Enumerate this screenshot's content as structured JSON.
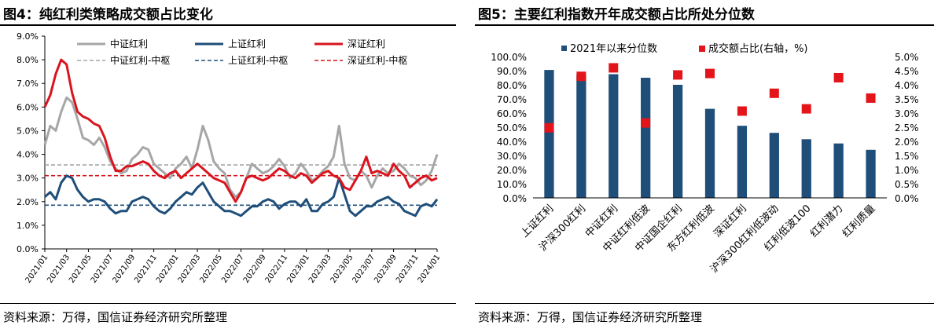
{
  "left": {
    "title": "图4：纯红利类策略成交额占比变化",
    "source": "资料来源：万得，国信证券经济研究所整理"
  },
  "right": {
    "title": "图5：主要红利指数开年成交额占比所处分位数",
    "source": "资料来源：万得，国信证券经济研究所整理"
  },
  "chart_data": [
    {
      "type": "line",
      "title": "",
      "xlabel": "",
      "ylabel": "",
      "ylim": [
        0,
        9
      ],
      "y_ticks": [
        "0.0%",
        "1.0%",
        "2.0%",
        "3.0%",
        "4.0%",
        "5.0%",
        "6.0%",
        "7.0%",
        "8.0%",
        "9.0%"
      ],
      "x_ticks": [
        "2021/01",
        "2021/03",
        "2021/05",
        "2021/07",
        "2021/09",
        "2021/11",
        "2022/01",
        "2022/03",
        "2022/05",
        "2022/07",
        "2022/09",
        "2022/11",
        "2023/01",
        "2023/03",
        "2023/05",
        "2023/07",
        "2023/09",
        "2023/11",
        "2024/01"
      ],
      "legend": [
        "中证红利",
        "上证红利",
        "深证红利",
        "中证红利-中枢",
        "上证红利-中枢",
        "深证红利-中枢"
      ],
      "colors": {
        "zhongzheng": "#a6a6a6",
        "shangzheng": "#1f4e79",
        "shenzheng": "#d9141e"
      },
      "x_months": [
        0,
        0.5,
        1,
        1.5,
        2,
        2.5,
        3,
        3.5,
        4,
        4.5,
        5,
        5.5,
        6,
        6.5,
        7,
        7.5,
        8,
        8.5,
        9,
        9.5,
        10,
        10.5,
        11,
        11.5,
        12,
        12.5,
        13,
        13.5,
        14,
        14.5,
        15,
        15.5,
        16,
        16.5,
        17,
        17.5,
        18,
        18.5,
        19,
        19.5,
        20,
        20.5,
        21,
        21.5,
        22,
        22.5,
        23,
        23.5,
        24,
        24.5,
        25,
        25.5,
        26,
        26.5,
        27,
        27.5,
        28,
        28.5,
        29,
        29.5,
        30,
        30.5,
        31,
        31.5,
        32,
        32.5,
        33,
        33.5,
        34,
        34.5,
        35,
        35.5,
        36
      ],
      "series": [
        {
          "name": "中证红利",
          "values": [
            4.4,
            5.2,
            5.0,
            5.8,
            6.4,
            6.2,
            5.5,
            4.7,
            4.6,
            4.4,
            4.7,
            4.3,
            3.7,
            3.4,
            3.2,
            3.3,
            3.8,
            4.0,
            4.3,
            4.2,
            3.6,
            3.4,
            3.2,
            3.0,
            3.4,
            3.6,
            3.9,
            3.4,
            4.2,
            5.2,
            4.6,
            3.7,
            3.4,
            3.2,
            2.5,
            2.2,
            2.4,
            3.0,
            3.6,
            3.4,
            3.2,
            3.3,
            3.5,
            3.8,
            3.5,
            3.0,
            3.2,
            3.6,
            3.3,
            2.9,
            3.0,
            3.3,
            3.5,
            3.9,
            5.2,
            3.6,
            3.0,
            2.9,
            3.3,
            3.1,
            2.6,
            3.1,
            3.4,
            3.2,
            3.3,
            3.6,
            3.4,
            3.1,
            3.0,
            2.7,
            2.9,
            3.3,
            4.0
          ]
        },
        {
          "name": "上证红利",
          "values": [
            2.2,
            2.4,
            2.1,
            2.8,
            3.1,
            3.0,
            2.5,
            2.2,
            2.0,
            2.1,
            2.1,
            2.0,
            1.7,
            1.5,
            1.6,
            1.6,
            2.0,
            2.1,
            2.2,
            2.1,
            1.8,
            1.6,
            1.5,
            1.7,
            2.0,
            2.2,
            2.4,
            2.3,
            2.6,
            2.8,
            2.4,
            2.0,
            1.8,
            1.6,
            1.6,
            1.5,
            1.4,
            1.6,
            1.8,
            1.8,
            2.0,
            2.1,
            2.0,
            1.7,
            1.9,
            2.0,
            2.0,
            1.8,
            2.1,
            1.6,
            1.6,
            1.9,
            2.0,
            2.2,
            3.0,
            2.3,
            1.6,
            1.4,
            1.6,
            1.8,
            1.8,
            2.0,
            2.1,
            2.2,
            2.0,
            1.9,
            1.6,
            1.5,
            1.4,
            1.8,
            1.9,
            1.8,
            2.1
          ]
        },
        {
          "name": "深证红利",
          "values": [
            6.0,
            6.5,
            7.4,
            8.0,
            7.8,
            6.6,
            5.8,
            5.6,
            5.5,
            5.3,
            5.2,
            4.7,
            3.9,
            3.3,
            3.3,
            3.5,
            3.5,
            3.6,
            3.7,
            3.6,
            3.3,
            3.1,
            3.0,
            3.2,
            3.3,
            3.0,
            3.2,
            3.4,
            3.6,
            3.4,
            3.2,
            3.0,
            2.9,
            2.8,
            2.4,
            2.0,
            2.4,
            3.0,
            3.1,
            3.0,
            2.9,
            3.0,
            3.2,
            3.4,
            3.3,
            3.1,
            3.0,
            3.2,
            3.1,
            2.8,
            3.0,
            3.2,
            3.3,
            3.1,
            3.0,
            2.6,
            2.5,
            2.9,
            3.3,
            3.9,
            3.2,
            3.3,
            3.2,
            3.1,
            3.6,
            3.3,
            3.1,
            2.6,
            2.8,
            3.0,
            3.1,
            2.9,
            3.0
          ]
        },
        {
          "name": "中证红利-中枢",
          "values": [
            3.55
          ]
        },
        {
          "name": "上证红利-中枢",
          "values": [
            1.85
          ]
        },
        {
          "name": "深证红利-中枢",
          "values": [
            3.1
          ]
        }
      ]
    },
    {
      "type": "bar",
      "title": "",
      "categories": [
        "上证红利",
        "沪深300红利",
        "中证红利",
        "中证红利低波",
        "中证国企红利",
        "东方红利低波",
        "深证红利",
        "沪深300红利低波动",
        "红利低波100",
        "红利潜力",
        "红利质量"
      ],
      "ylim": [
        0,
        100
      ],
      "y2lim": [
        0,
        5
      ],
      "y_ticks": [
        "0.0%",
        "10.0%",
        "20.0%",
        "30.0%",
        "40.0%",
        "50.0%",
        "60.0%",
        "70.0%",
        "80.0%",
        "90.0%",
        "100.0%"
      ],
      "y2_ticks": [
        "0.0%",
        "0.5%",
        "1.0%",
        "1.5%",
        "2.0%",
        "2.5%",
        "3.0%",
        "3.5%",
        "4.0%",
        "4.5%",
        "5.0%"
      ],
      "legend": [
        "2021年以来分位数",
        "成交额占比(右轴，%)"
      ],
      "colors": {
        "bar": "#1f4e79",
        "marker": "#e3151b"
      },
      "series": [
        {
          "name": "2021年以来分位数",
          "axis": "left",
          "values": [
            90.5,
            87.0,
            87.5,
            85.0,
            80.0,
            63.0,
            51.0,
            46.0,
            41.5,
            38.5,
            34.0
          ]
        },
        {
          "name": "成交额占比(右轴，%)",
          "axis": "right",
          "values": [
            2.48,
            4.3,
            4.6,
            2.65,
            4.35,
            4.4,
            3.07,
            3.7,
            3.15,
            4.25,
            3.53
          ]
        }
      ]
    }
  ]
}
